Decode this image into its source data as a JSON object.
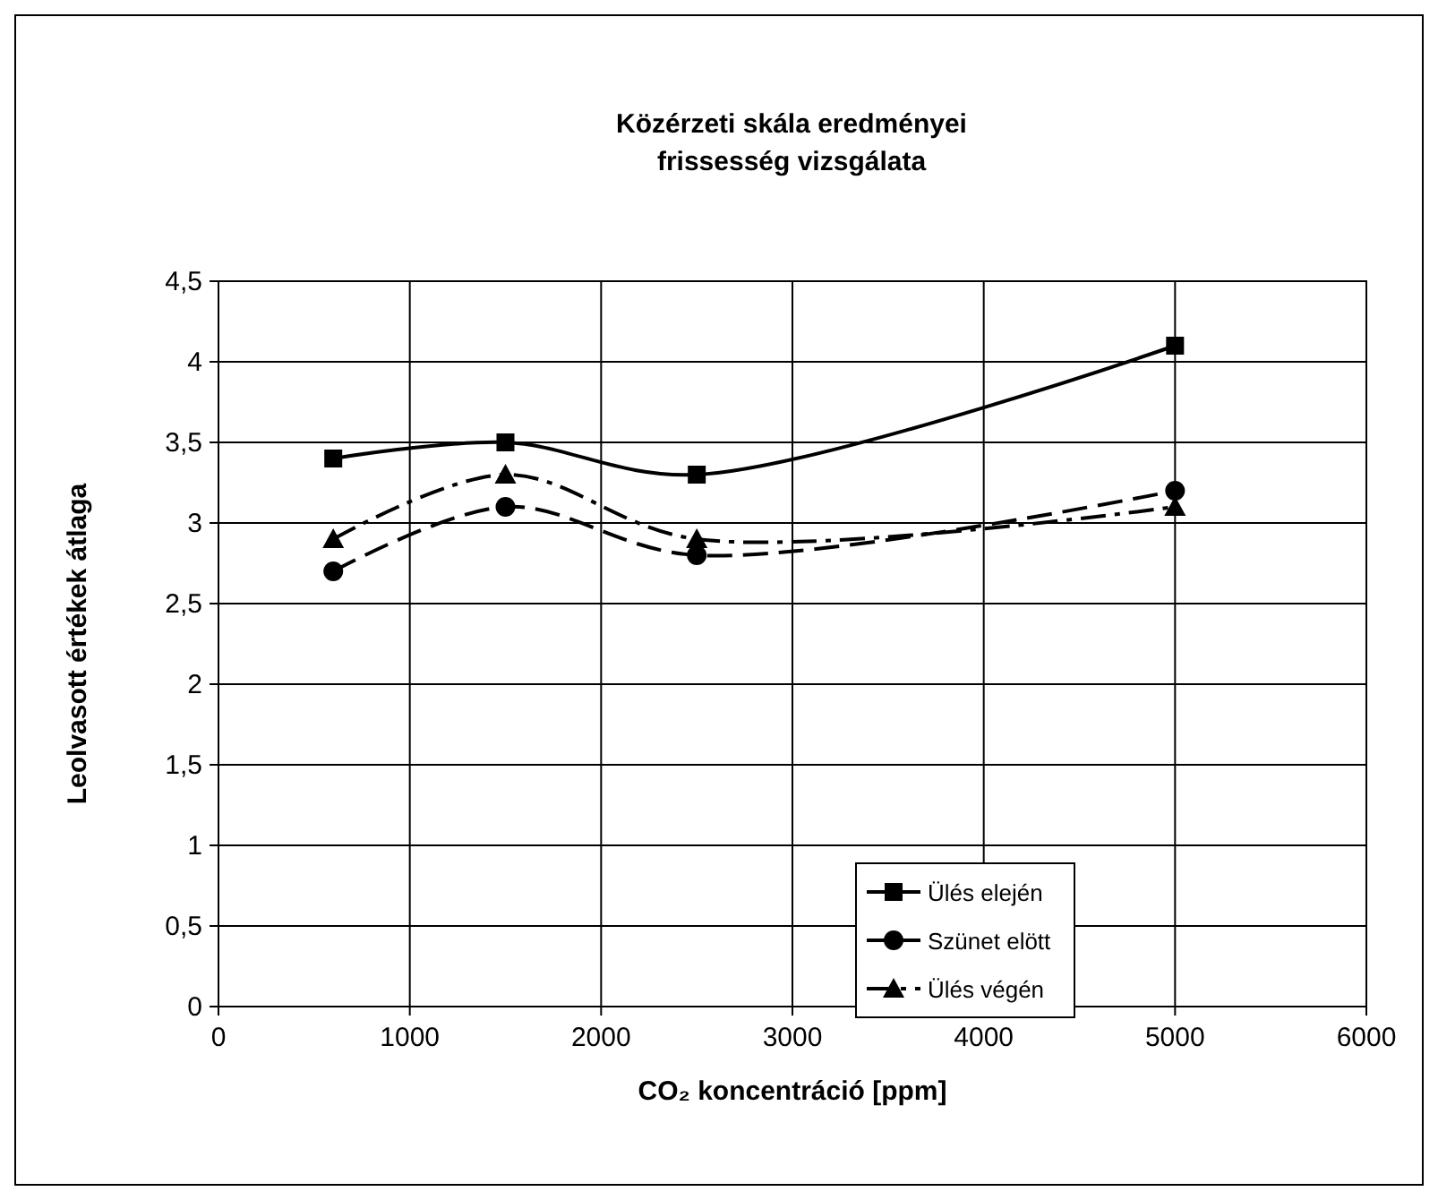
{
  "chart_data": {
    "type": "line",
    "title": "Közérzeti skála eredményei\nfrissesség vizsgálata",
    "xlabel": "CO₂ koncentráció [ppm]",
    "ylabel": "Leolvasott értékek átlaga",
    "x": [
      600,
      1500,
      2500,
      5000
    ],
    "series": [
      {
        "name": "Ülés elején",
        "color": "#000000",
        "values": [
          3.4,
          3.5,
          3.3,
          4.1
        ],
        "marker": "square",
        "line_style": "solid"
      },
      {
        "name": "Szünet elött",
        "color": "#000000",
        "values": [
          2.7,
          3.1,
          2.8,
          3.2
        ],
        "marker": "circle",
        "line_style": "dashed"
      },
      {
        "name": "Ülés végén",
        "color": "#000000",
        "values": [
          2.9,
          3.3,
          2.9,
          3.1
        ],
        "marker": "triangle",
        "line_style": "dashdot"
      }
    ],
    "xlim": [
      0,
      6000
    ],
    "xticks": [
      0,
      1000,
      2000,
      3000,
      4000,
      5000,
      6000
    ],
    "ylim": [
      0,
      4.5
    ],
    "yticks": [
      {
        "value": 0,
        "label": "0"
      },
      {
        "value": 0.5,
        "label": "0,5"
      },
      {
        "value": 1,
        "label": "1"
      },
      {
        "value": 1.5,
        "label": "1,5"
      },
      {
        "value": 2,
        "label": "2"
      },
      {
        "value": 2.5,
        "label": "2,5"
      },
      {
        "value": 3,
        "label": "3"
      },
      {
        "value": 3.5,
        "label": "3,5"
      },
      {
        "value": 4,
        "label": "4"
      },
      {
        "value": 4.5,
        "label": "4,5"
      }
    ],
    "grid": true,
    "legend": "bottom right"
  }
}
